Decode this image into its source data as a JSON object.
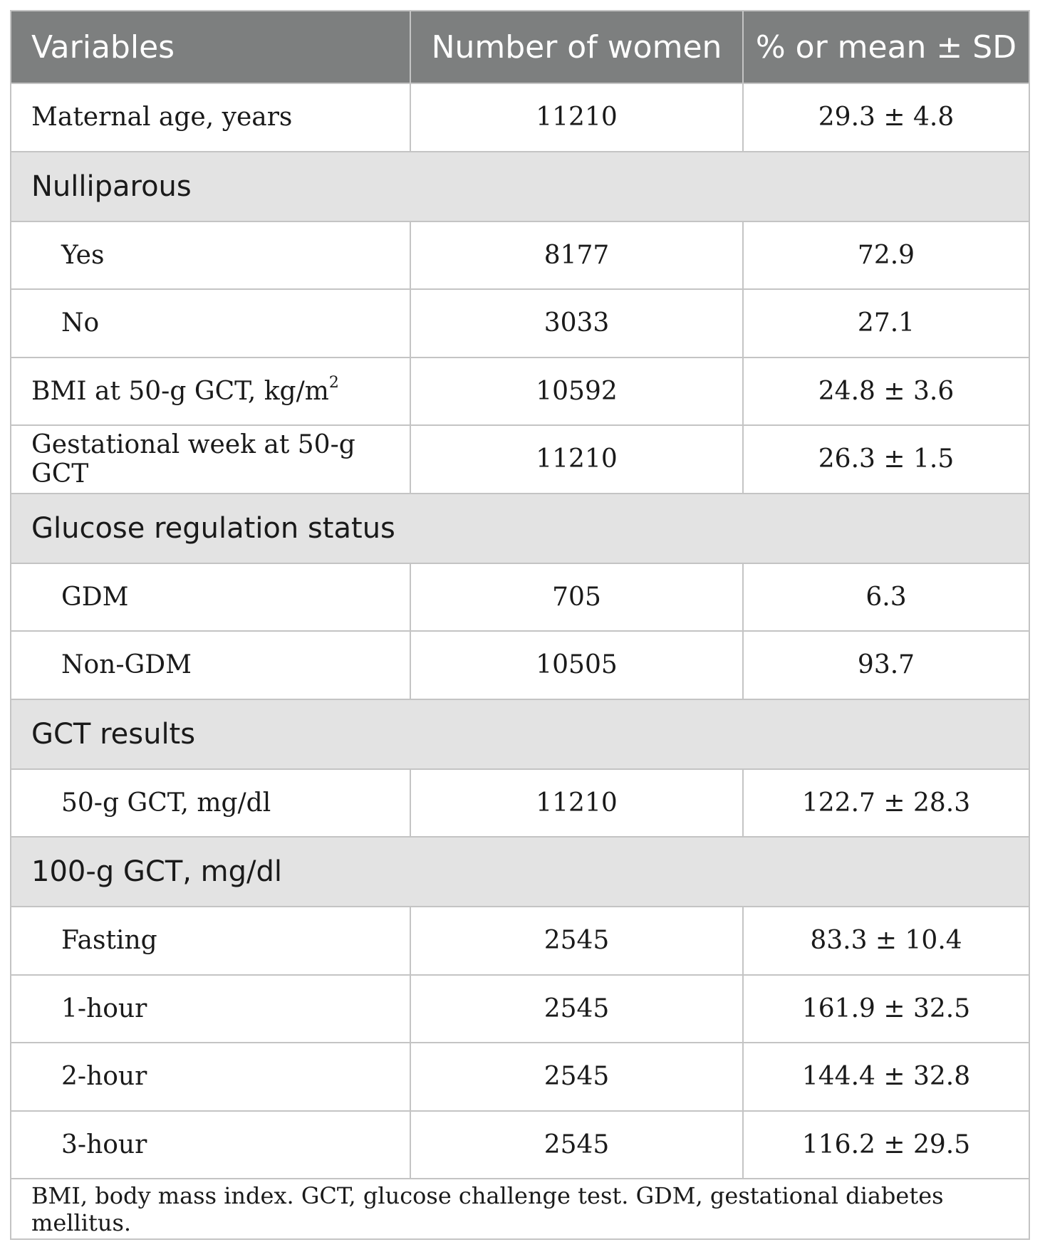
{
  "table": {
    "headers": [
      "Variables",
      "Number of women",
      "% or mean ± SD"
    ],
    "rows": [
      {
        "type": "data",
        "label": "Maternal age, years",
        "count": "11210",
        "value": "29.3 ± 4.8"
      },
      {
        "type": "group",
        "label": "Nulliparous"
      },
      {
        "type": "sub",
        "label": "Yes",
        "count": "8177",
        "value": "72.9"
      },
      {
        "type": "sub",
        "label": "No",
        "count": "3033",
        "value": "27.1"
      },
      {
        "type": "data",
        "label": "BMI at 50-g GCT, kg/m",
        "sup": "2",
        "count": "10592",
        "value": "24.8 ± 3.6"
      },
      {
        "type": "data",
        "label": "Gestational week at 50-g GCT",
        "count": "11210",
        "value": "26.3 ± 1.5"
      },
      {
        "type": "group",
        "label": "Glucose regulation status"
      },
      {
        "type": "sub",
        "label": "GDM",
        "count": "705",
        "value": "6.3"
      },
      {
        "type": "sub",
        "label": "Non-GDM",
        "count": "10505",
        "value": "93.7"
      },
      {
        "type": "group",
        "label": "GCT results"
      },
      {
        "type": "sub",
        "label": "50-g GCT, mg/dl",
        "count": "11210",
        "value": "122.7 ± 28.3"
      },
      {
        "type": "group",
        "label": "100-g GCT, mg/dl"
      },
      {
        "type": "sub",
        "label": "Fasting",
        "count": "2545",
        "value": "83.3 ± 10.4"
      },
      {
        "type": "sub",
        "label": "1-hour",
        "count": "2545",
        "value": "161.9 ± 32.5"
      },
      {
        "type": "sub",
        "label": "2-hour",
        "count": "2545",
        "value": "144.4 ± 32.8"
      },
      {
        "type": "sub",
        "label": "3-hour",
        "count": "2545",
        "value": "116.2 ± 29.5"
      }
    ],
    "footnote": "BMI, body mass index. GCT, glucose challenge test. GDM, gestational diabetes mellitus."
  }
}
